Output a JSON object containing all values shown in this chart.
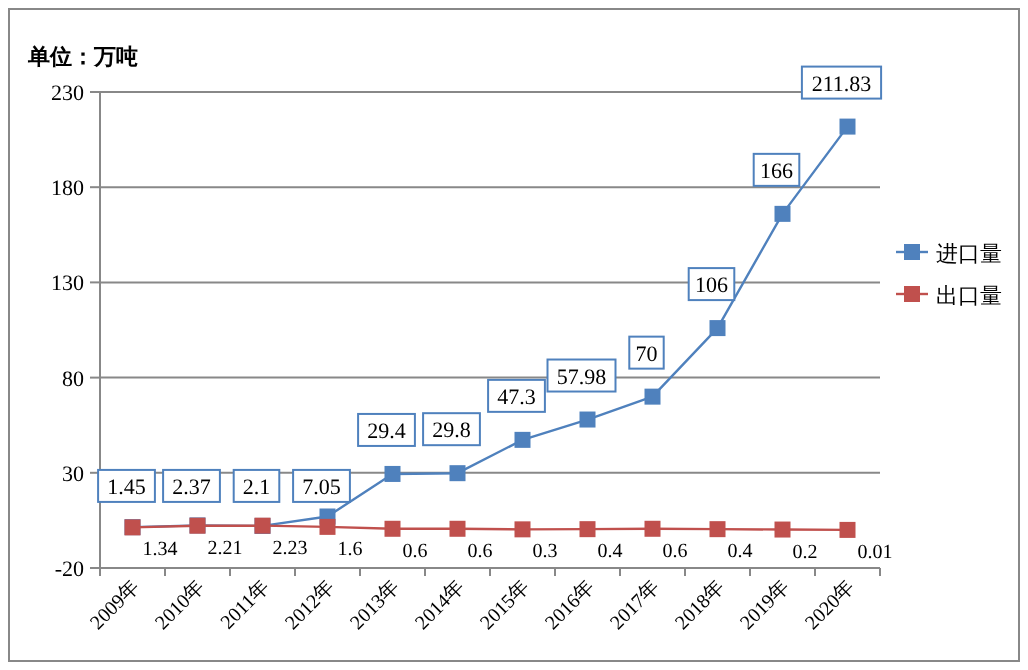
{
  "chart_data": {
    "type": "line",
    "ylabel": "单位：万吨",
    "categories": [
      "2009年",
      "2010年",
      "2011年",
      "2012年",
      "2013年",
      "2014年",
      "2015年",
      "2016年",
      "2017年",
      "2018年",
      "2019年",
      "2020年"
    ],
    "series": [
      {
        "name": "进口量",
        "color": "#4f81bd",
        "values": [
          1.45,
          2.37,
          2.1,
          7.05,
          29.4,
          29.8,
          47.3,
          57.98,
          70,
          106,
          166,
          211.83
        ]
      },
      {
        "name": "出口量",
        "color": "#c0504d",
        "values": [
          1.34,
          2.21,
          2.23,
          1.6,
          0.6,
          0.6,
          0.3,
          0.4,
          0.6,
          0.4,
          0.2,
          0.01
        ]
      }
    ],
    "ylim": [
      -20,
      230
    ],
    "yticks": [
      -20,
      30,
      80,
      130,
      180,
      230
    ],
    "grid": "y",
    "legend": "right",
    "marker": "square",
    "data_labels": true
  }
}
